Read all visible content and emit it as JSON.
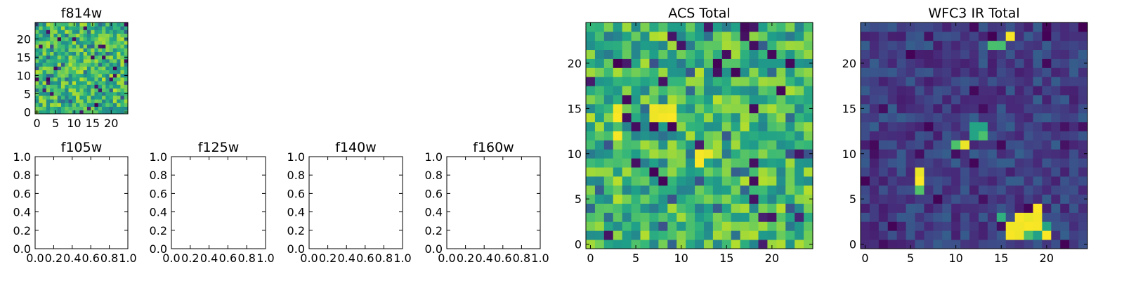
{
  "panels": [
    {
      "id": "f814w",
      "title": "f814w",
      "kind": "image",
      "colormap": "viridis",
      "grid_size": 25,
      "value_range": [
        0,
        1
      ],
      "xlim": [
        -0.5,
        24.5
      ],
      "ylim": [
        -0.5,
        24.5
      ],
      "xticks": [
        0,
        5,
        10,
        15,
        20
      ],
      "yticks": [
        0,
        5,
        10,
        15,
        20
      ],
      "xticklabels": [
        "0",
        "5",
        "10",
        "15",
        "20"
      ],
      "yticklabels": [
        "0",
        "5",
        "10",
        "15",
        "20"
      ],
      "seed": 17,
      "dist": "acs"
    },
    {
      "id": "f105w",
      "title": "f105w",
      "kind": "empty",
      "xlim": [
        0,
        1
      ],
      "ylim": [
        0,
        1
      ],
      "xticks": [
        0,
        0.2,
        0.4,
        0.6,
        0.8,
        1
      ],
      "yticks": [
        0,
        0.2,
        0.4,
        0.6,
        0.8,
        1
      ],
      "xticklabels": [
        "0.0",
        "0.2",
        "0.4",
        "0.6",
        "0.8",
        "1.0"
      ],
      "yticklabels": [
        "0.0",
        "0.2",
        "0.4",
        "0.6",
        "0.8",
        "1.0"
      ]
    },
    {
      "id": "f125w",
      "title": "f125w",
      "kind": "empty",
      "xlim": [
        0,
        1
      ],
      "ylim": [
        0,
        1
      ],
      "xticks": [
        0,
        0.2,
        0.4,
        0.6,
        0.8,
        1
      ],
      "yticks": [
        0,
        0.2,
        0.4,
        0.6,
        0.8,
        1
      ],
      "xticklabels": [
        "0.0",
        "0.2",
        "0.4",
        "0.6",
        "0.8",
        "1.0"
      ],
      "yticklabels": [
        "0.0",
        "0.2",
        "0.4",
        "0.6",
        "0.8",
        "1.0"
      ]
    },
    {
      "id": "f140w",
      "title": "f140w",
      "kind": "empty",
      "xlim": [
        0,
        1
      ],
      "ylim": [
        0,
        1
      ],
      "xticks": [
        0,
        0.2,
        0.4,
        0.6,
        0.8,
        1
      ],
      "yticks": [
        0,
        0.2,
        0.4,
        0.6,
        0.8,
        1
      ],
      "xticklabels": [
        "0.0",
        "0.2",
        "0.4",
        "0.6",
        "0.8",
        "1.0"
      ],
      "yticklabels": [
        "0.0",
        "0.2",
        "0.4",
        "0.6",
        "0.8",
        "1.0"
      ]
    },
    {
      "id": "f160w",
      "title": "f160w",
      "kind": "empty",
      "xlim": [
        0,
        1
      ],
      "ylim": [
        0,
        1
      ],
      "xticks": [
        0,
        0.2,
        0.4,
        0.6,
        0.8,
        1
      ],
      "yticks": [
        0,
        0.2,
        0.4,
        0.6,
        0.8,
        1
      ],
      "xticklabels": [
        "0.0",
        "0.2",
        "0.4",
        "0.6",
        "0.8",
        "1.0"
      ],
      "yticklabels": [
        "0.0",
        "0.2",
        "0.4",
        "0.6",
        "0.8",
        "1.0"
      ]
    },
    {
      "id": "acs-total",
      "title": "ACS Total",
      "kind": "image",
      "colormap": "viridis",
      "grid_size": 25,
      "value_range": [
        0,
        1
      ],
      "xlim": [
        -0.5,
        24.5
      ],
      "ylim": [
        -0.5,
        24.5
      ],
      "xticks": [
        0,
        5,
        10,
        15,
        20
      ],
      "yticks": [
        0,
        5,
        10,
        15,
        20
      ],
      "xticklabels": [
        "0",
        "5",
        "10",
        "15",
        "20"
      ],
      "yticklabels": [
        "0",
        "5",
        "10",
        "15",
        "20"
      ],
      "seed": 29,
      "dist": "acs",
      "bright_cells": [
        [
          7,
          14
        ],
        [
          8,
          14
        ],
        [
          9,
          14
        ],
        [
          7,
          15
        ],
        [
          8,
          15
        ],
        [
          9,
          15
        ],
        [
          3,
          14
        ],
        [
          3,
          15
        ],
        [
          3,
          12
        ],
        [
          12,
          9
        ],
        [
          12,
          10
        ],
        [
          13,
          10
        ]
      ],
      "dark_cells": [
        [
          4,
          16
        ],
        [
          16,
          19
        ],
        [
          20,
          21
        ],
        [
          21,
          17
        ],
        [
          18,
          9
        ],
        [
          18,
          7
        ],
        [
          9,
          23
        ],
        [
          18,
          22
        ],
        [
          17,
          23
        ]
      ]
    },
    {
      "id": "wfc3-ir-total",
      "title": "WFC3 IR Total",
      "kind": "image",
      "colormap": "viridis",
      "grid_size": 25,
      "value_range": [
        0,
        1
      ],
      "xlim": [
        -0.5,
        24.5
      ],
      "ylim": [
        -0.5,
        24.5
      ],
      "xticks": [
        0,
        5,
        10,
        15,
        20
      ],
      "yticks": [
        0,
        5,
        10,
        15,
        20
      ],
      "xticklabels": [
        "0",
        "5",
        "10",
        "15",
        "20"
      ],
      "yticklabels": [
        "0",
        "5",
        "10",
        "15",
        "20"
      ],
      "seed": 43,
      "dist": "ir",
      "bright_cells": [
        [
          16,
          2
        ],
        [
          17,
          2
        ],
        [
          16,
          1
        ],
        [
          17,
          1
        ],
        [
          18,
          2
        ],
        [
          19,
          2
        ],
        [
          18,
          3
        ],
        [
          19,
          3
        ],
        [
          20,
          1
        ],
        [
          19,
          4
        ],
        [
          16,
          23
        ],
        [
          6,
          7
        ],
        [
          6,
          8
        ],
        [
          11,
          11
        ],
        [
          17,
          3
        ]
      ],
      "mid_cells": [
        [
          10,
          11
        ],
        [
          12,
          12
        ],
        [
          12,
          13
        ],
        [
          13,
          12
        ],
        [
          13,
          13
        ],
        [
          15,
          3
        ],
        [
          18,
          1
        ],
        [
          19,
          1
        ],
        [
          20,
          2
        ],
        [
          14,
          22
        ],
        [
          15,
          22
        ],
        [
          6,
          6
        ]
      ]
    }
  ],
  "chart_data": [
    {
      "type": "heatmap",
      "title": "f814w",
      "x_range": [
        0,
        24
      ],
      "y_range": [
        0,
        24
      ],
      "grid": "25x25",
      "colormap": "viridis",
      "xticks": [
        0,
        5,
        10,
        15,
        20
      ],
      "yticks": [
        0,
        5,
        10,
        15,
        20
      ]
    },
    {
      "type": "scatter",
      "title": "f105w",
      "series": [],
      "xlim": [
        0,
        1
      ],
      "ylim": [
        0,
        1
      ]
    },
    {
      "type": "scatter",
      "title": "f125w",
      "series": [],
      "xlim": [
        0,
        1
      ],
      "ylim": [
        0,
        1
      ]
    },
    {
      "type": "scatter",
      "title": "f140w",
      "series": [],
      "xlim": [
        0,
        1
      ],
      "ylim": [
        0,
        1
      ]
    },
    {
      "type": "scatter",
      "title": "f160w",
      "series": [],
      "xlim": [
        0,
        1
      ],
      "ylim": [
        0,
        1
      ]
    },
    {
      "type": "heatmap",
      "title": "ACS Total",
      "x_range": [
        0,
        24
      ],
      "y_range": [
        0,
        24
      ],
      "grid": "25x25",
      "colormap": "viridis",
      "xticks": [
        0,
        5,
        10,
        15,
        20
      ],
      "yticks": [
        0,
        5,
        10,
        15,
        20
      ]
    },
    {
      "type": "heatmap",
      "title": "WFC3 IR Total",
      "x_range": [
        0,
        24
      ],
      "y_range": [
        0,
        24
      ],
      "grid": "25x25",
      "colormap": "viridis",
      "xticks": [
        0,
        5,
        10,
        15,
        20
      ],
      "yticks": [
        0,
        5,
        10,
        15,
        20
      ]
    }
  ]
}
